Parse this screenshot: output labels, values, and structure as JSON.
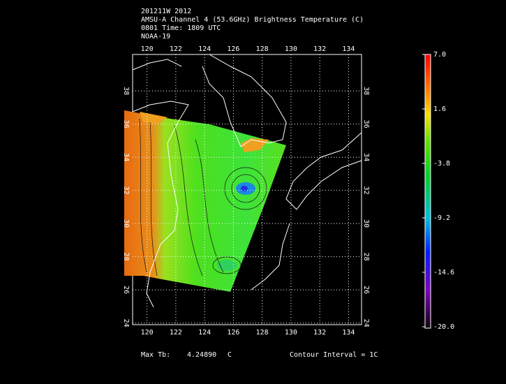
{
  "header": {
    "lines": [
      "201211W 2012",
      "AMSU-A Channel 4 (53.6GHz) Brightness Temperature (C)",
      "0801 Time: 1809 UTC",
      "NOAA-19"
    ]
  },
  "map": {
    "lonlim": [
      119,
      134.9
    ],
    "latlim": [
      23.9,
      40.2
    ],
    "lon_ticks": [
      120,
      122,
      124,
      126,
      128,
      130,
      132,
      134
    ],
    "lat_ticks": [
      24,
      26,
      28,
      30,
      32,
      34,
      36,
      38
    ]
  },
  "colorbar": {
    "lim": [
      -20,
      7
    ],
    "ticks": [
      {
        "value": 7,
        "label": "7.0"
      },
      {
        "value": 1.6,
        "label": "1.6"
      },
      {
        "value": -3.8,
        "label": "-3.8"
      },
      {
        "value": -9.2,
        "label": "-9.2"
      },
      {
        "value": -14.6,
        "label": "-14.6"
      },
      {
        "value": -20,
        "label": "-20.0"
      }
    ]
  },
  "footer": {
    "max_tb_label": "Max Tb:",
    "max_tb_value": "4.24890",
    "max_tb_unit": "C",
    "contour": "Contour Interval = 1C"
  }
}
